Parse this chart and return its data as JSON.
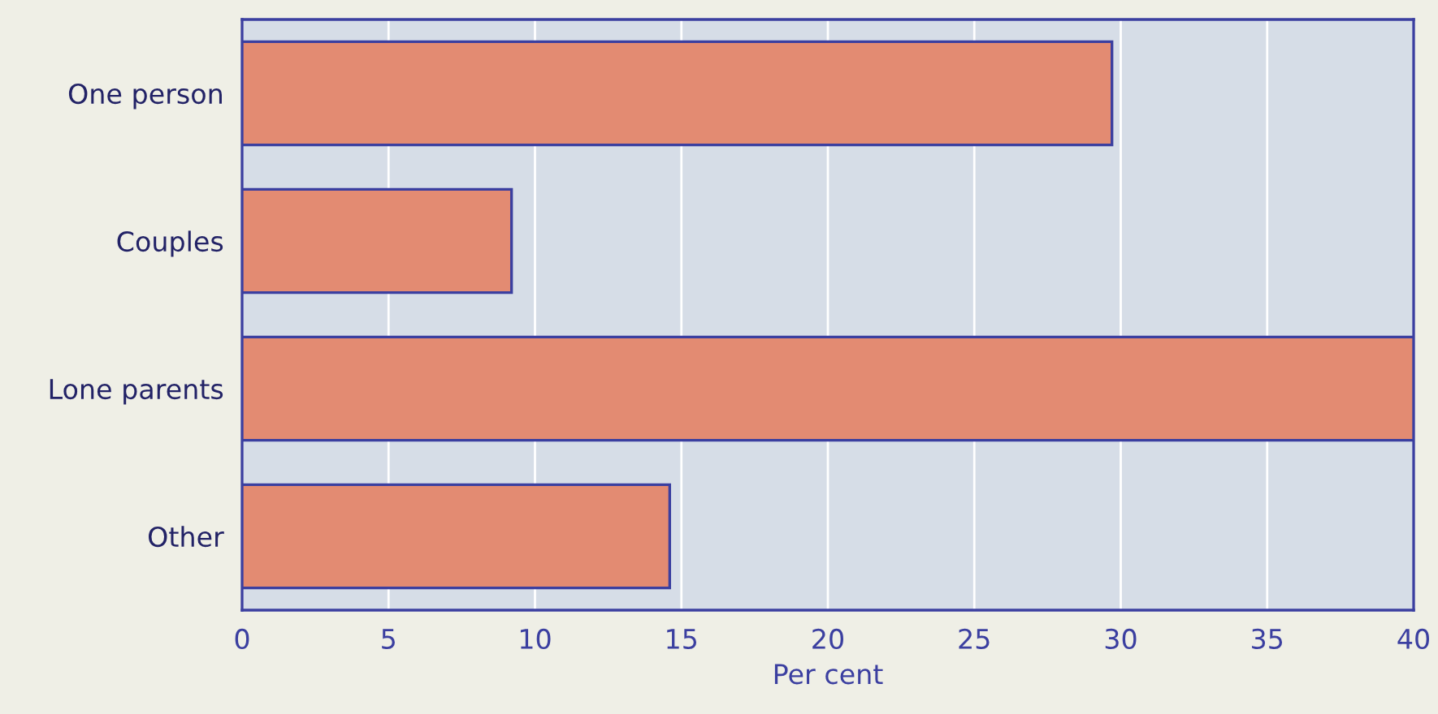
{
  "chart_data": {
    "type": "bar",
    "orientation": "horizontal",
    "xlabel": "Per cent",
    "categories": [
      "One person",
      "Couples",
      "Lone parents",
      "Other"
    ],
    "values": [
      29.7,
      9.2,
      40,
      14.6
    ],
    "color": "#e38b72",
    "xlim": [
      0,
      40
    ],
    "xticks": [
      0,
      5,
      10,
      15,
      20,
      25,
      30,
      35,
      40
    ],
    "grid": "x"
  }
}
